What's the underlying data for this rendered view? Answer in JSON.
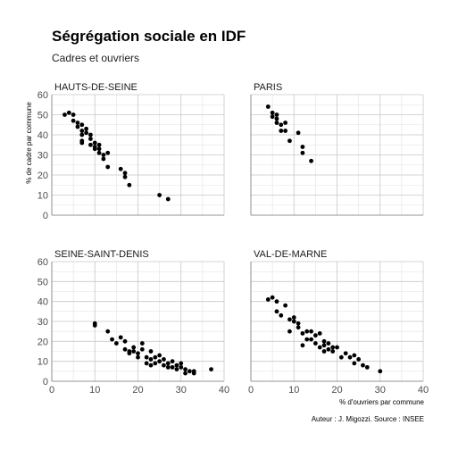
{
  "chart_data": {
    "type": "scatter",
    "title": "Ségrégation sociale en IDF",
    "subtitle": "Cadres et ouvriers",
    "xlabel": "% d'ouvriers par commune",
    "ylabel": "% de cadre par commune",
    "caption": "Auteur : J. Migozzi. Source : INSEE",
    "xlim": [
      0,
      40
    ],
    "ylim": [
      0,
      60
    ],
    "x_ticks": [
      "0",
      "10",
      "20",
      "30",
      "40"
    ],
    "y_ticks": [
      "0",
      "10",
      "20",
      "30",
      "40",
      "50",
      "60"
    ],
    "grid": true,
    "panels": [
      {
        "name": "HAUTS-DE-SEINE",
        "points": [
          [
            3,
            50
          ],
          [
            4,
            51
          ],
          [
            5,
            50
          ],
          [
            5,
            47
          ],
          [
            6,
            46
          ],
          [
            6,
            44
          ],
          [
            7,
            45
          ],
          [
            7,
            42
          ],
          [
            7,
            40
          ],
          [
            8,
            43
          ],
          [
            8,
            41
          ],
          [
            7,
            37
          ],
          [
            7,
            36
          ],
          [
            9,
            40
          ],
          [
            9,
            38
          ],
          [
            9,
            35
          ],
          [
            10,
            36
          ],
          [
            10,
            34
          ],
          [
            10,
            33
          ],
          [
            11,
            35
          ],
          [
            11,
            33
          ],
          [
            11,
            31
          ],
          [
            12,
            28
          ],
          [
            12,
            30
          ],
          [
            13,
            24
          ],
          [
            13,
            31
          ],
          [
            16,
            23
          ],
          [
            17,
            21
          ],
          [
            17,
            19
          ],
          [
            18,
            15
          ],
          [
            25,
            10
          ],
          [
            27,
            8
          ]
        ]
      },
      {
        "name": "PARIS",
        "points": [
          [
            4,
            54
          ],
          [
            5,
            51
          ],
          [
            5,
            49
          ],
          [
            6,
            50
          ],
          [
            6,
            48
          ],
          [
            6,
            46
          ],
          [
            7,
            45
          ],
          [
            7,
            42
          ],
          [
            8,
            42
          ],
          [
            8,
            46
          ],
          [
            9,
            37
          ],
          [
            11,
            41
          ],
          [
            12,
            34
          ],
          [
            12,
            31
          ],
          [
            14,
            27
          ]
        ]
      },
      {
        "name": "SEINE-SAINT-DENIS",
        "points": [
          [
            10,
            28
          ],
          [
            10,
            29
          ],
          [
            13,
            25
          ],
          [
            14,
            21
          ],
          [
            15,
            19
          ],
          [
            16,
            22
          ],
          [
            17,
            20
          ],
          [
            17,
            16
          ],
          [
            18,
            15
          ],
          [
            18,
            14
          ],
          [
            19,
            17
          ],
          [
            19,
            15
          ],
          [
            20,
            14
          ],
          [
            20,
            12
          ],
          [
            21,
            19
          ],
          [
            21,
            16
          ],
          [
            22,
            12
          ],
          [
            22,
            9
          ],
          [
            23,
            11
          ],
          [
            23,
            8
          ],
          [
            23,
            15
          ],
          [
            24,
            12
          ],
          [
            24,
            9
          ],
          [
            25,
            10
          ],
          [
            25,
            13
          ],
          [
            26,
            11
          ],
          [
            26,
            8
          ],
          [
            27,
            9
          ],
          [
            27,
            7
          ],
          [
            28,
            10
          ],
          [
            28,
            7
          ],
          [
            29,
            8
          ],
          [
            29,
            6
          ],
          [
            30,
            9
          ],
          [
            30,
            7
          ],
          [
            31,
            6
          ],
          [
            31,
            4
          ],
          [
            32,
            5
          ],
          [
            33,
            4
          ],
          [
            33,
            5
          ],
          [
            37,
            6
          ]
        ]
      },
      {
        "name": "VAL-DE-MARNE",
        "points": [
          [
            4,
            41
          ],
          [
            5,
            42
          ],
          [
            6,
            40
          ],
          [
            6,
            35
          ],
          [
            7,
            33
          ],
          [
            8,
            38
          ],
          [
            9,
            31
          ],
          [
            9,
            25
          ],
          [
            10,
            32
          ],
          [
            10,
            30
          ],
          [
            11,
            29
          ],
          [
            11,
            27
          ],
          [
            12,
            24
          ],
          [
            12,
            18
          ],
          [
            13,
            25
          ],
          [
            13,
            21
          ],
          [
            14,
            25
          ],
          [
            14,
            21
          ],
          [
            15,
            23
          ],
          [
            15,
            19
          ],
          [
            16,
            24
          ],
          [
            16,
            17
          ],
          [
            17,
            20
          ],
          [
            17,
            18
          ],
          [
            17,
            15
          ],
          [
            18,
            19
          ],
          [
            18,
            16
          ],
          [
            19,
            17
          ],
          [
            19,
            15
          ],
          [
            20,
            17
          ],
          [
            21,
            12
          ],
          [
            22,
            14
          ],
          [
            23,
            12
          ],
          [
            24,
            9
          ],
          [
            24,
            13
          ],
          [
            25,
            11
          ],
          [
            26,
            8
          ],
          [
            27,
            7
          ],
          [
            30,
            5
          ]
        ]
      }
    ]
  }
}
